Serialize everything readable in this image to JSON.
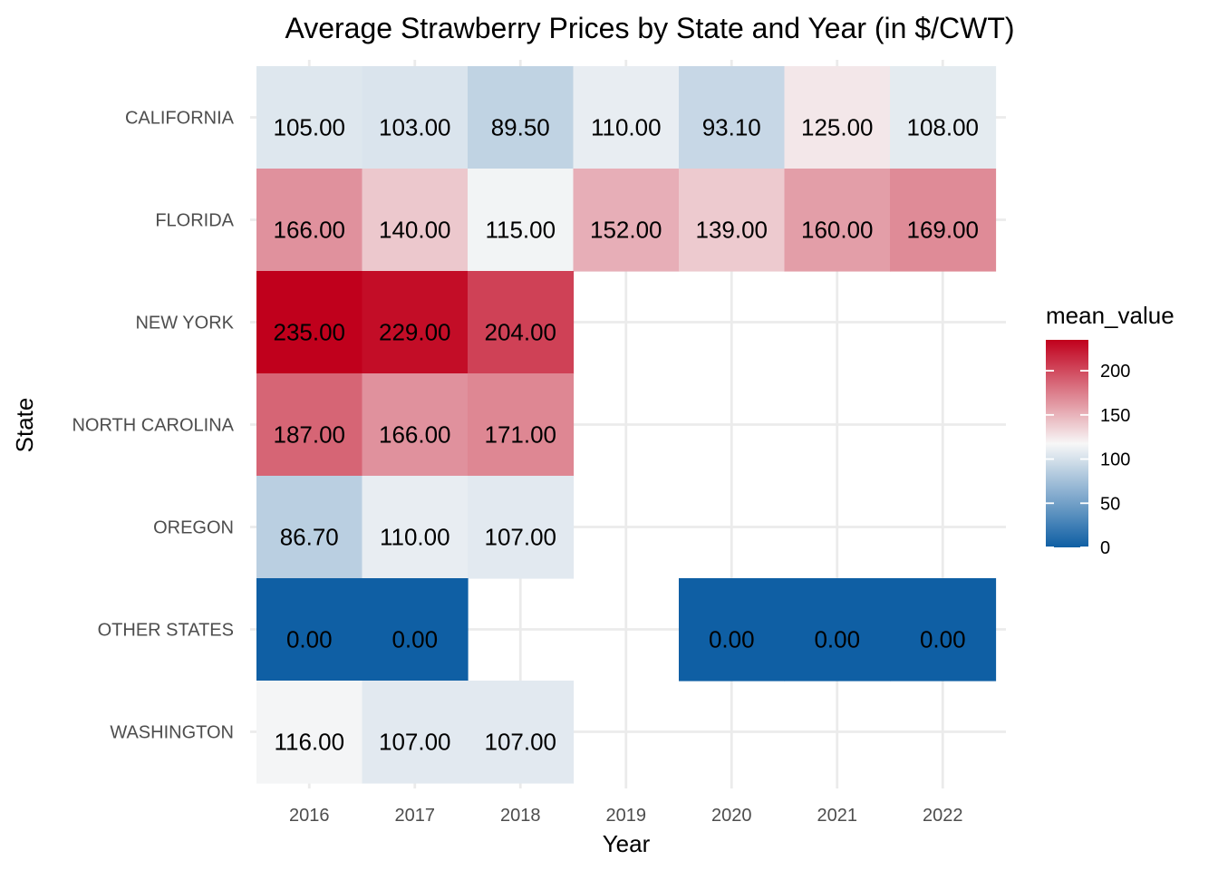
{
  "chart_data": {
    "type": "heatmap",
    "title": "Average Strawberry Prices by State and Year (in $/CWT)",
    "xlabel": "Year",
    "ylabel": "State",
    "x": [
      "2016",
      "2017",
      "2018",
      "2019",
      "2020",
      "2021",
      "2022"
    ],
    "y": [
      "CALIFORNIA",
      "FLORIDA",
      "NEW YORK",
      "NORTH CAROLINA",
      "OREGON",
      "OTHER STATES",
      "WASHINGTON"
    ],
    "values": [
      [
        105.0,
        103.0,
        89.5,
        110.0,
        93.1,
        125.0,
        108.0
      ],
      [
        166.0,
        140.0,
        115.0,
        152.0,
        139.0,
        160.0,
        169.0
      ],
      [
        235.0,
        229.0,
        204.0,
        null,
        null,
        null,
        null
      ],
      [
        187.0,
        166.0,
        171.0,
        null,
        null,
        null,
        null
      ],
      [
        86.7,
        110.0,
        107.0,
        null,
        null,
        null,
        null
      ],
      [
        0.0,
        0.0,
        null,
        null,
        0.0,
        0.0,
        0.0
      ],
      [
        116.0,
        107.0,
        107.0,
        null,
        null,
        null,
        null
      ]
    ],
    "labels": [
      [
        "105.00",
        "103.00",
        "89.50",
        "110.00",
        "93.10",
        "125.00",
        "108.00"
      ],
      [
        "166.00",
        "140.00",
        "115.00",
        "152.00",
        "139.00",
        "160.00",
        "169.00"
      ],
      [
        "235.00",
        "229.00",
        "204.00",
        null,
        null,
        null,
        null
      ],
      [
        "187.00",
        "166.00",
        "171.00",
        null,
        null,
        null,
        null
      ],
      [
        "86.70",
        "110.00",
        "107.00",
        null,
        null,
        null,
        null
      ],
      [
        "0.00",
        "0.00",
        null,
        null,
        "0.00",
        "0.00",
        "0.00"
      ],
      [
        "116.00",
        "107.00",
        "107.00",
        null,
        null,
        null,
        null
      ]
    ],
    "legend": {
      "title": "mean_value",
      "ticks": [
        0,
        50,
        100,
        150,
        200
      ],
      "tick_labels": [
        "0",
        "50",
        "100",
        "150",
        "200"
      ],
      "range": [
        0,
        235
      ],
      "midpoint": 117.5,
      "colors": {
        "low": "#0f5fa4",
        "mid": "#f7f7f7",
        "high": "#c0001c"
      },
      "placement": "right"
    },
    "grid": true,
    "theme": "minimal"
  }
}
